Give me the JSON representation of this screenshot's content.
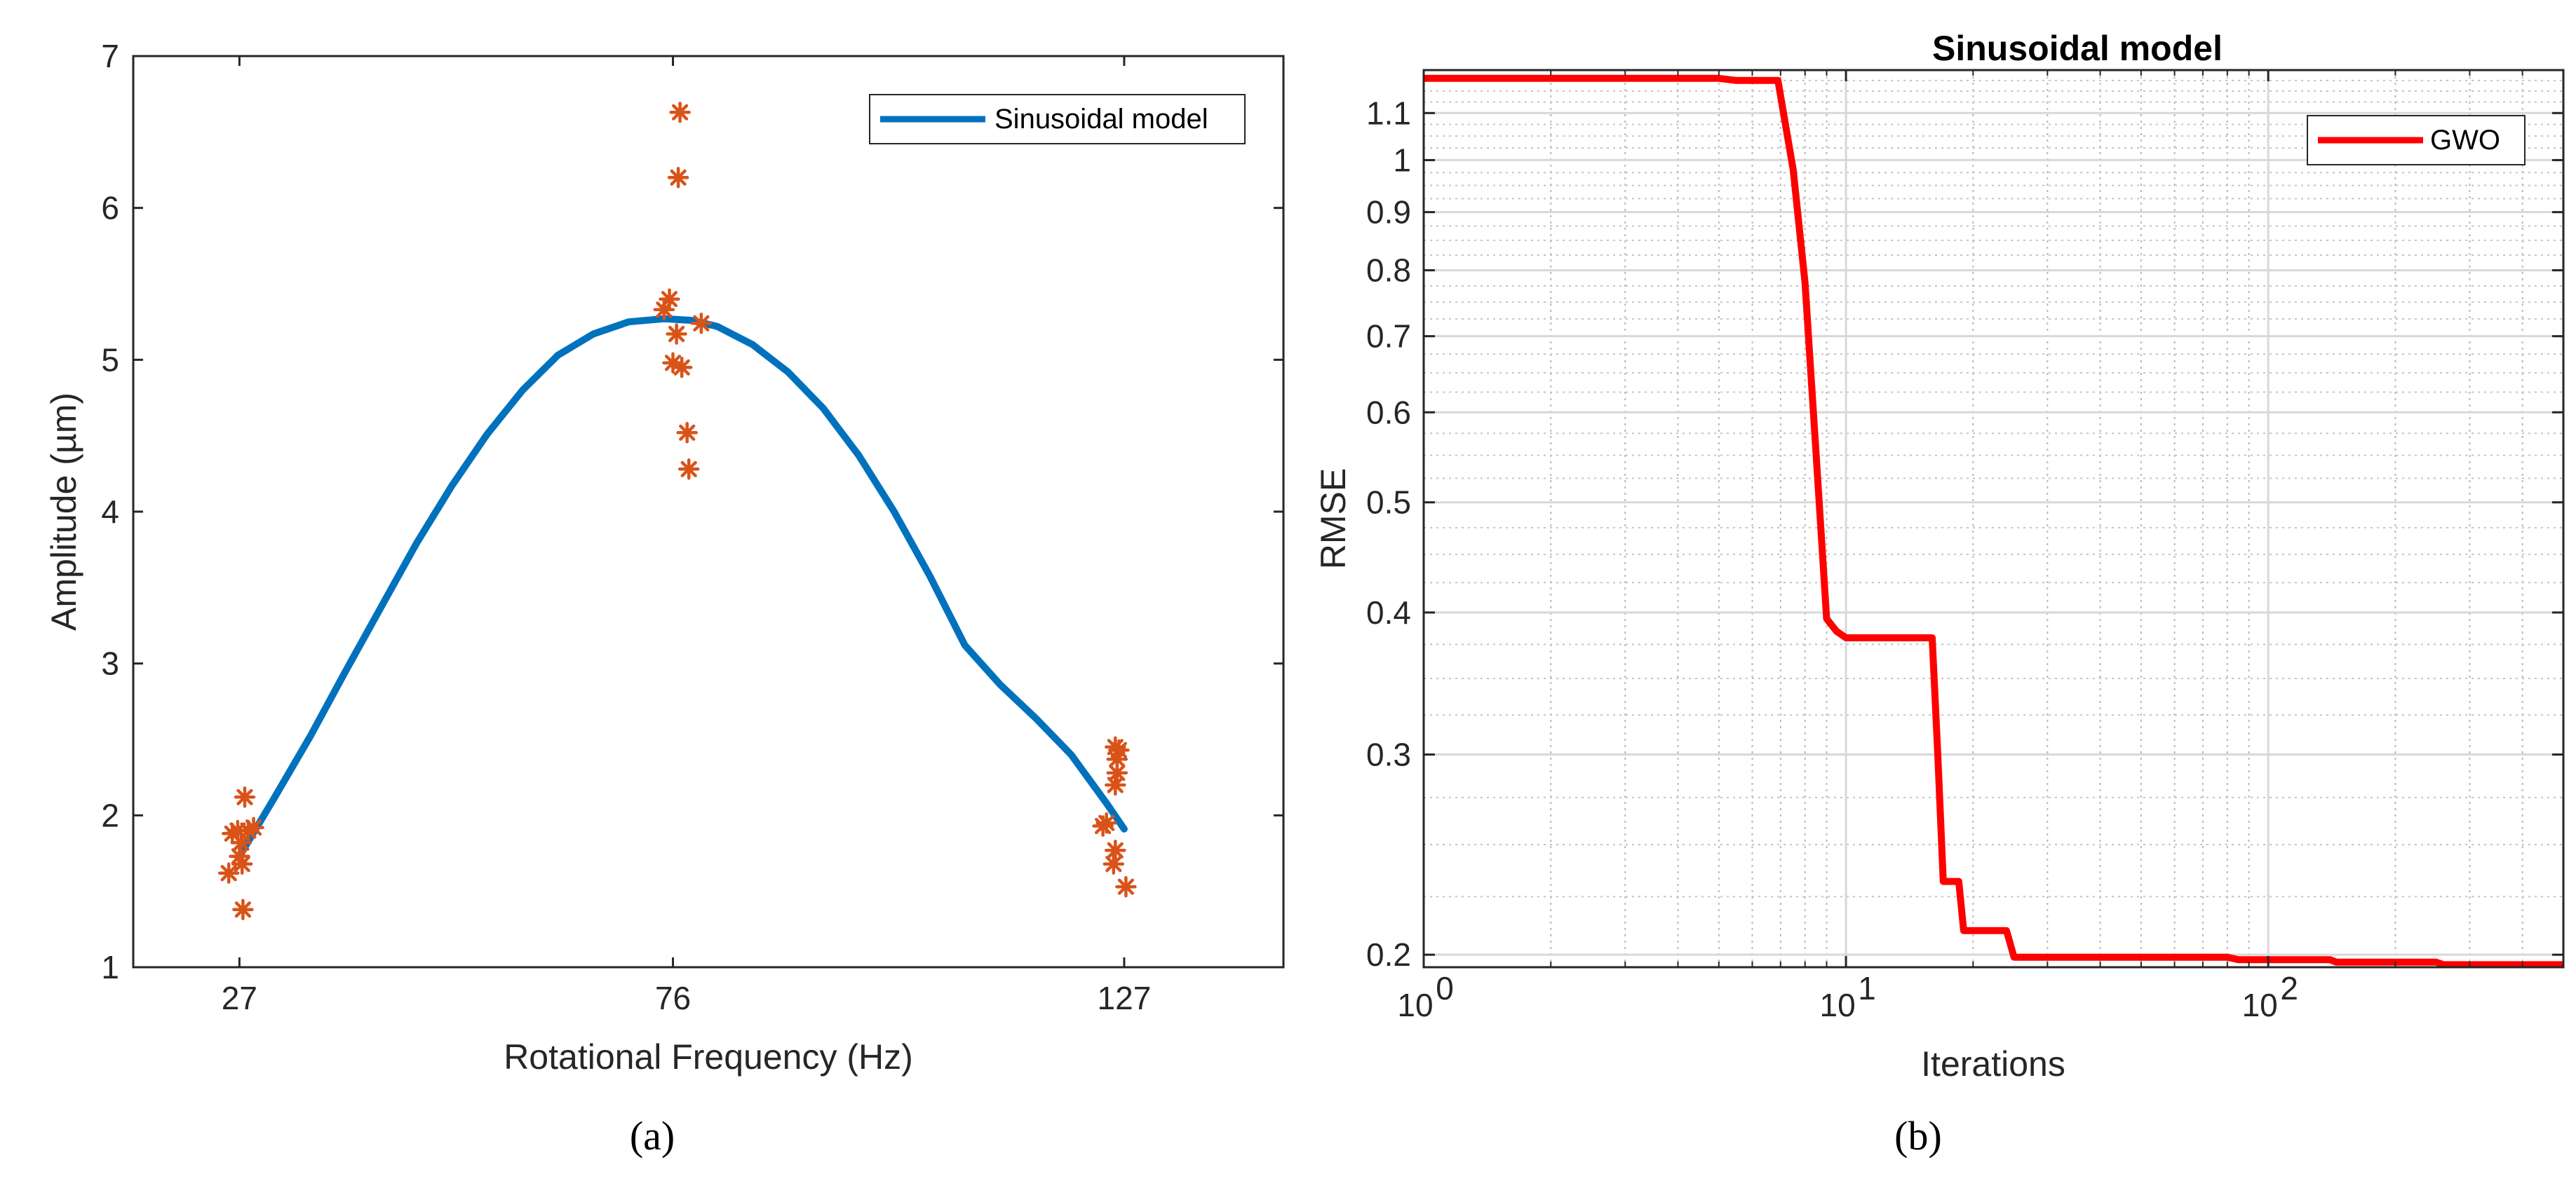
{
  "chart_data": [
    {
      "id": "a",
      "type": "scatter",
      "caption": "(a)",
      "title": "",
      "xlabel": "Rotational Frequency (Hz)",
      "ylabel": "Amplitude (µm)",
      "xlim": [
        15,
        145
      ],
      "ylim": [
        1,
        7
      ],
      "xticks": [
        27,
        76,
        127
      ],
      "yticks": [
        1,
        2,
        3,
        4,
        5,
        6,
        7
      ],
      "grid": false,
      "legend": {
        "position": "top-right",
        "entries": [
          "Sinusoidal model"
        ]
      },
      "series": [
        {
          "name": "Sinusoidal model",
          "kind": "line",
          "color": "#0072BD",
          "x": [
            27,
            31,
            35,
            39,
            43,
            47,
            51,
            55,
            59,
            63,
            67,
            71,
            75,
            78,
            81,
            85,
            89,
            93,
            97,
            101,
            105,
            109,
            113,
            117,
            121,
            125,
            127
          ],
          "y": [
            1.73,
            2.12,
            2.52,
            2.95,
            3.37,
            3.79,
            4.17,
            4.51,
            4.8,
            5.03,
            5.17,
            5.25,
            5.27,
            5.26,
            5.22,
            5.1,
            4.92,
            4.68,
            4.37,
            4.0,
            3.58,
            3.12,
            2.86,
            2.64,
            2.4,
            2.08,
            1.91
          ]
        },
        {
          "kind": "scatter",
          "color": "#D95319",
          "marker": "asterisk",
          "points": [
            [
              25.8,
              1.62
            ],
            [
              26.2,
              1.88
            ],
            [
              26.8,
              1.9
            ],
            [
              27.0,
              1.73
            ],
            [
              27.2,
              1.82
            ],
            [
              27.3,
              1.68
            ],
            [
              27.4,
              1.38
            ],
            [
              27.6,
              2.12
            ],
            [
              28.0,
              1.9
            ],
            [
              28.6,
              1.92
            ],
            [
              75.0,
              5.33
            ],
            [
              75.6,
              5.4
            ],
            [
              76.0,
              4.98
            ],
            [
              76.4,
              5.17
            ],
            [
              76.6,
              6.2
            ],
            [
              76.8,
              6.63
            ],
            [
              77.0,
              4.95
            ],
            [
              77.6,
              4.52
            ],
            [
              77.8,
              4.28
            ],
            [
              79.2,
              5.24
            ],
            [
              124.6,
              1.93
            ],
            [
              125.0,
              1.95
            ],
            [
              126.0,
              2.45
            ],
            [
              126.2,
              2.37
            ],
            [
              126.2,
              2.28
            ],
            [
              126.4,
              2.43
            ],
            [
              126.0,
              2.2
            ],
            [
              126.0,
              1.77
            ],
            [
              125.8,
              1.68
            ],
            [
              127.2,
              1.53
            ]
          ]
        }
      ]
    },
    {
      "id": "b",
      "type": "line",
      "caption": "(b)",
      "title": "Sinusoidal model",
      "xlabel": "Iterations",
      "ylabel": "RMSE",
      "xscale": "log",
      "yscale": "log",
      "xlim": [
        1,
        500
      ],
      "ylim": [
        0.195,
        1.2
      ],
      "xticks": [
        1,
        10,
        100
      ],
      "xtick_labels": [
        [
          "10",
          "0"
        ],
        [
          "10",
          "1"
        ],
        [
          "10",
          "2"
        ]
      ],
      "yticks": [
        0.2,
        0.3,
        0.4,
        0.5,
        0.6,
        0.7,
        0.8,
        0.9,
        1,
        1.1
      ],
      "ytick_labels": [
        "0.2",
        "0.3",
        "0.4",
        "0.5",
        "0.6",
        "0.7",
        "0.8",
        "0.9",
        "1",
        "1.1"
      ],
      "grid": true,
      "minor_grid": true,
      "legend": {
        "position": "top-right",
        "entries": [
          "GWO"
        ]
      },
      "series": [
        {
          "name": "GWO",
          "color": "#FF0000",
          "x": [
            1,
            5,
            5.5,
            6,
            6.9,
            7.5,
            8.0,
            8.5,
            9.0,
            9.5,
            10,
            12,
            16,
            16.5,
            17,
            18,
            18.5,
            19,
            24,
            25,
            40,
            60,
            80,
            85,
            140,
            145,
            250,
            260,
            500
          ],
          "y": [
            1.18,
            1.18,
            1.175,
            1.175,
            1.175,
            0.98,
            0.78,
            0.55,
            0.395,
            0.385,
            0.38,
            0.38,
            0.38,
            0.3,
            0.232,
            0.232,
            0.232,
            0.21,
            0.21,
            0.199,
            0.199,
            0.199,
            0.199,
            0.198,
            0.198,
            0.197,
            0.197,
            0.196,
            0.196
          ]
        }
      ]
    }
  ]
}
